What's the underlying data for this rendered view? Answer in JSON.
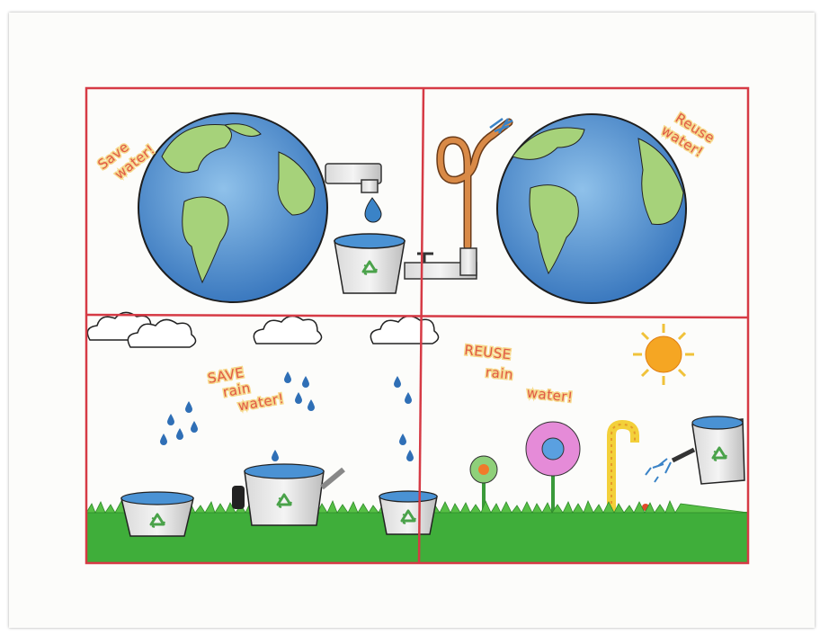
{
  "panels": {
    "top_left": {
      "caption_line1": "Save",
      "caption_line2": "water!"
    },
    "top_right": {
      "caption_line1": "Reuse",
      "caption_line2": "water!"
    },
    "bottom_left": {
      "caption_line1": "SAVE",
      "caption_line2": "rain",
      "caption_line3": "water!"
    },
    "bottom_right": {
      "caption_line1": "REUSE",
      "caption_line2": "rain",
      "caption_line3": "water!"
    }
  },
  "icons": [
    "earth-icon",
    "faucet-icon",
    "water-drop-icon",
    "recycle-bucket-icon",
    "hose-icon",
    "cloud-icon",
    "rain-drop-icon",
    "watering-can-icon",
    "flower-icon",
    "sun-icon",
    "grass-icon"
  ],
  "colors": {
    "frame": "#d63a45",
    "ocean": "#4d8fcf",
    "land": "#a6d27a",
    "grass": "#3fae3a",
    "sun": "#f5a623",
    "caption": "#e05a46"
  }
}
